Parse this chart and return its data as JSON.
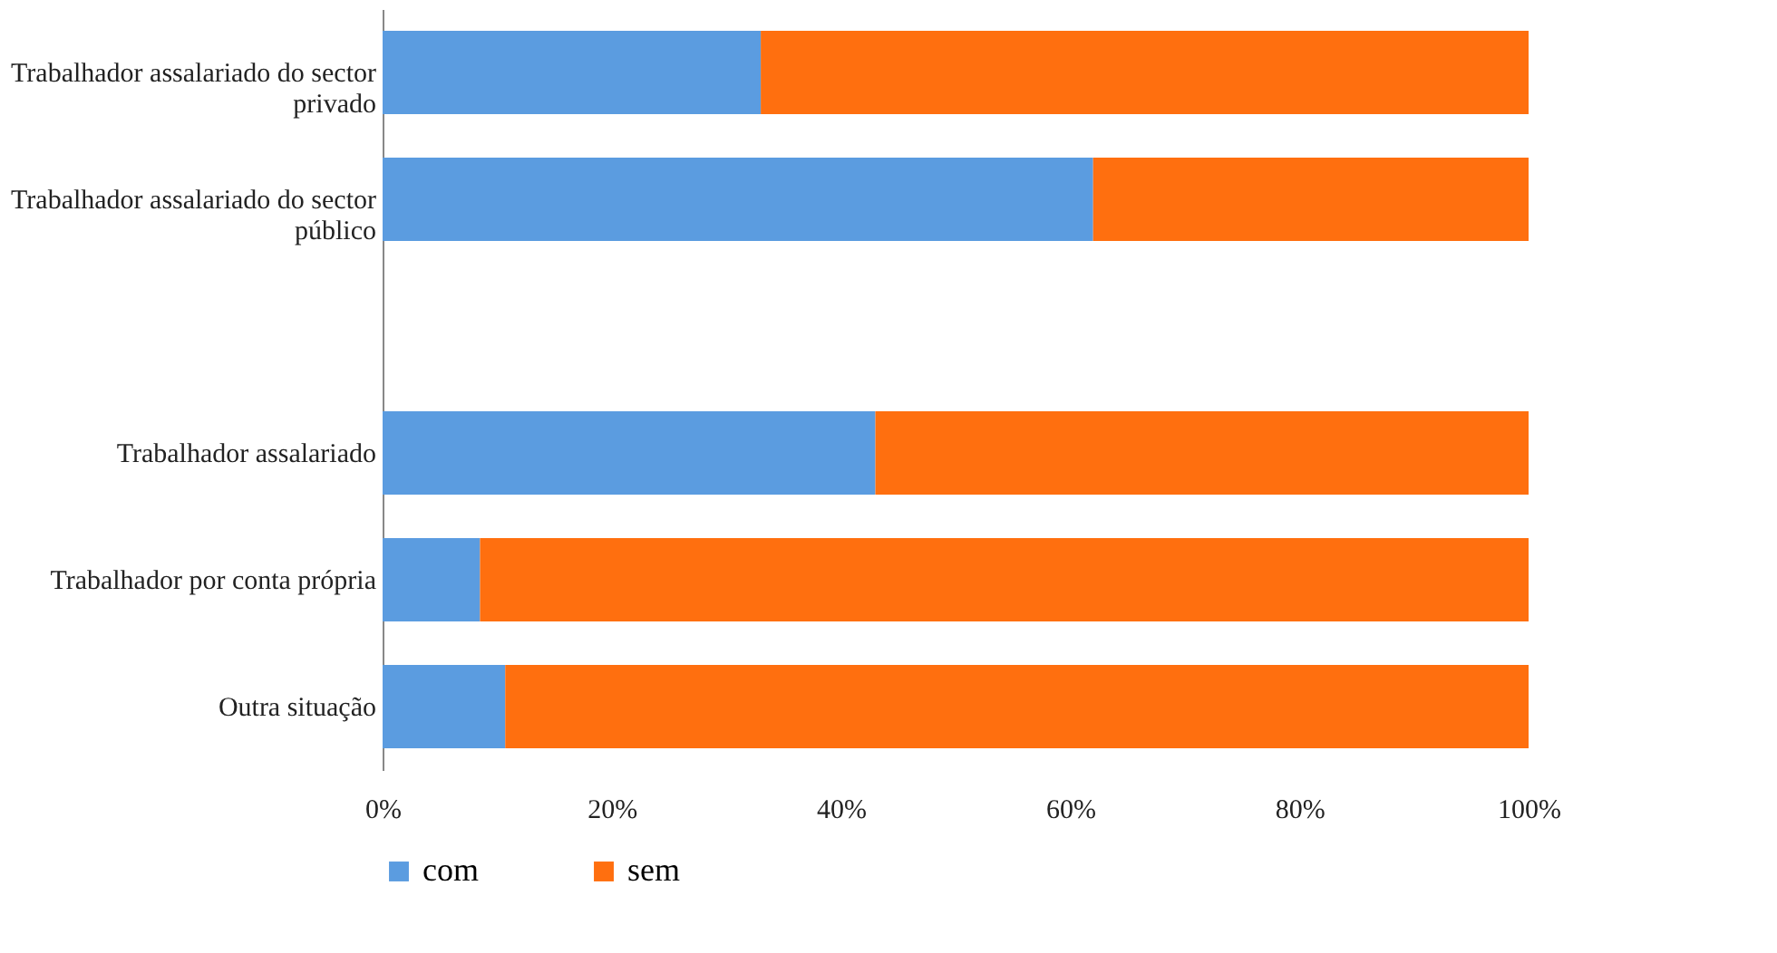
{
  "chart_data": {
    "type": "bar",
    "orientation": "horizontal",
    "stacked": true,
    "categories": [
      "Trabalhador assalariado do sector privado",
      "Trabalhador assalariado do sector público",
      null,
      "Trabalhador assalariado",
      "Trabalhador por conta própria",
      "Outra situação"
    ],
    "series": [
      {
        "name": "com",
        "color": "#5b9ce0",
        "values": [
          33,
          62,
          null,
          43,
          8.5,
          10.7
        ]
      },
      {
        "name": "sem",
        "color": "#ff6f0f",
        "values": [
          67,
          38,
          null,
          57,
          91.5,
          89.3
        ]
      }
    ],
    "xlim": [
      0,
      100
    ],
    "xticks": [
      {
        "value": 0,
        "label": "0%"
      },
      {
        "value": 20,
        "label": "20%"
      },
      {
        "value": 40,
        "label": "40%"
      },
      {
        "value": 60,
        "label": "60%"
      },
      {
        "value": 80,
        "label": "80%"
      },
      {
        "value": 100,
        "label": "100%"
      }
    ],
    "grid": false,
    "legend": "bottom"
  }
}
